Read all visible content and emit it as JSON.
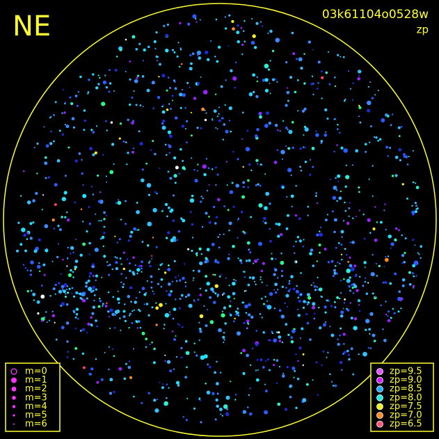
{
  "header": {
    "label": "NE",
    "frame_id": "03k61104o0528w",
    "mode": "zp"
  },
  "legend_magnitude": [
    "m=0",
    "m=1",
    "m=2",
    "m=3",
    "m=4",
    "m=5",
    "m=6"
  ],
  "legend_zp": [
    "zp=9.5",
    "zp=9.0",
    "zp=8.5",
    "zp=8.0",
    "zp=7.5",
    "zp=7.0",
    "zp=6.5"
  ]
}
